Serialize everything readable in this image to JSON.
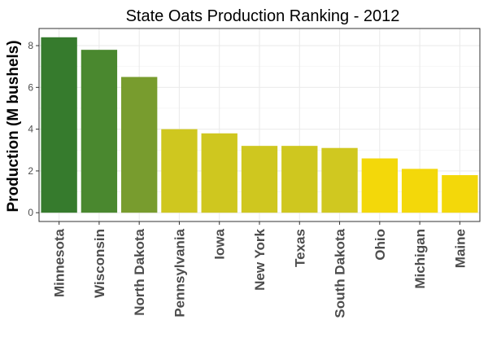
{
  "chart_data": {
    "type": "bar",
    "title": "State Oats Production Ranking - 2012",
    "xlabel": "",
    "ylabel": "Production (M bushels)",
    "categories": [
      "Minnesota",
      "Wisconsin",
      "North Dakota",
      "Pennsylvania",
      "Iowa",
      "New York",
      "Texas",
      "South Dakota",
      "Ohio",
      "Michigan",
      "Maine"
    ],
    "values": [
      8.4,
      7.8,
      6.5,
      4.0,
      3.8,
      3.2,
      3.2,
      3.1,
      2.6,
      2.1,
      1.8
    ],
    "colors": [
      "#367b2d",
      "#4a882f",
      "#789c2e",
      "#cfc71f",
      "#cfc71f",
      "#cfc71f",
      "#cfc71f",
      "#d0c820",
      "#f3d80a",
      "#f3d80a",
      "#f3d80a"
    ],
    "ylim": [
      -0.42,
      8.82
    ],
    "yticks": [
      0,
      2,
      4,
      6,
      8
    ],
    "grid": true,
    "legend": "none"
  }
}
